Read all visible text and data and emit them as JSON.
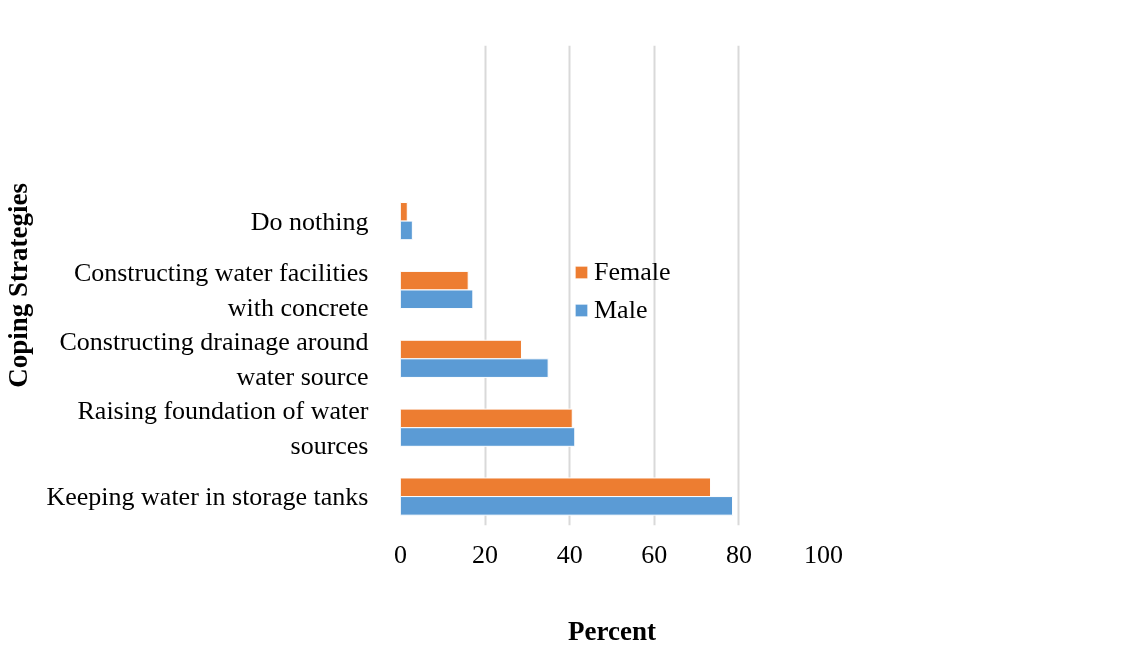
{
  "chart_data": {
    "type": "bar",
    "orientation": "horizontal",
    "xlabel": "Percent",
    "ylabel": "Coping Strategies",
    "categories": [
      "Do nothing",
      "Constructing water facilities with concrete",
      "Constructing drainage around water source",
      "Raising foundation of water sources",
      "Keeping water in storage tanks"
    ],
    "series": [
      {
        "name": "Female",
        "color": "#ed7d31",
        "values": [
          1.6,
          16.0,
          28.6,
          40.6,
          73.3
        ]
      },
      {
        "name": "Male",
        "color": "#5b9bd5",
        "values": [
          2.8,
          17.1,
          34.9,
          41.2,
          78.5
        ]
      }
    ],
    "xlim": [
      0,
      100
    ],
    "xticks": [
      0,
      20,
      40,
      60,
      80,
      100
    ],
    "grid": "x",
    "legend": "right"
  }
}
